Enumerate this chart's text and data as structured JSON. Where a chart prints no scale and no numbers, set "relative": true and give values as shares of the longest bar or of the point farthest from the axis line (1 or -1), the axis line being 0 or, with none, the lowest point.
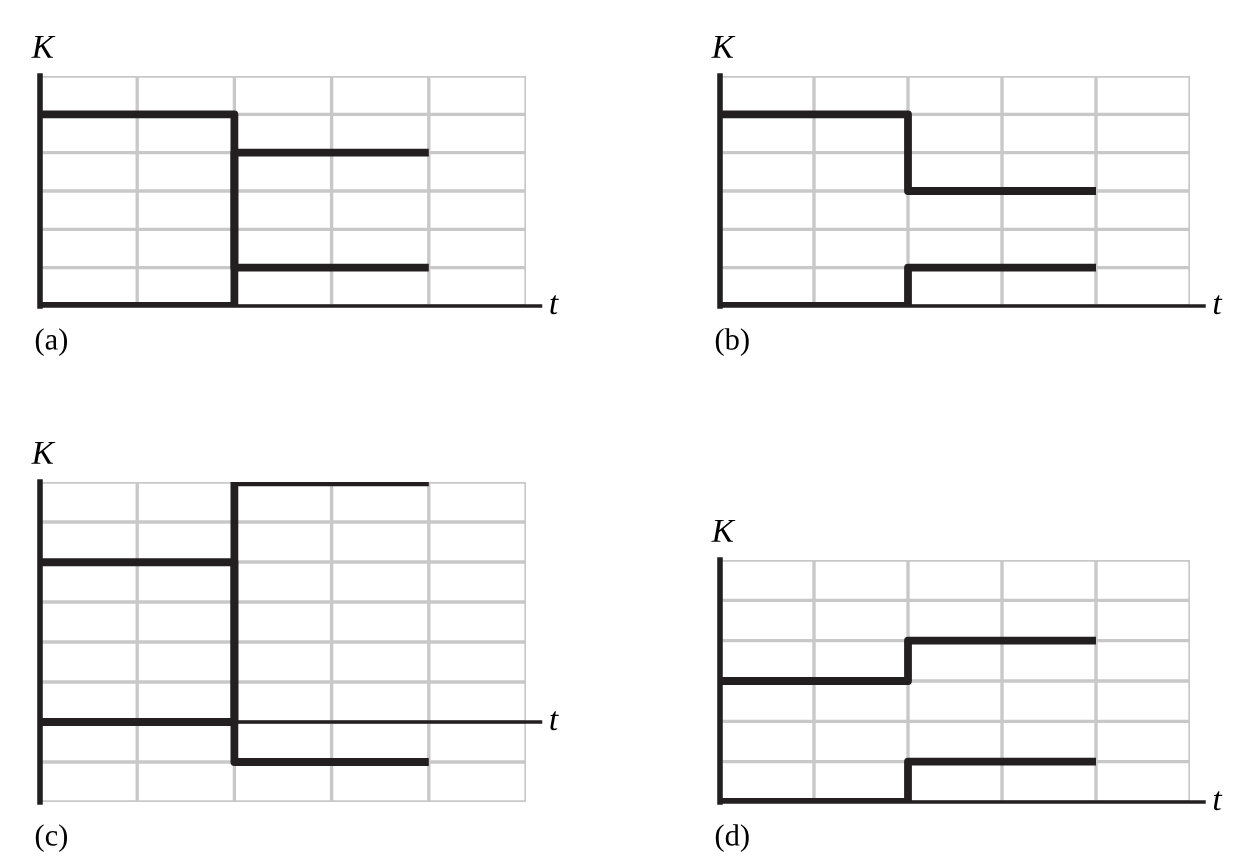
{
  "chart_data": [
    {
      "type": "step",
      "relative": true,
      "grid": true,
      "ylabel": "K",
      "xlabel": "t",
      "annotations": [
        "(a)"
      ],
      "categories": [
        null,
        null,
        null,
        null,
        null
      ],
      "series": [
        {
          "color": "#231f20",
          "values": [
            1,
            1,
            0.2,
            0.2,
            0.2
          ]
        },
        {
          "color": "#231f20",
          "values": [
            0,
            0,
            0.8,
            0.8,
            0.8
          ]
        }
      ]
    },
    {
      "type": "step",
      "relative": true,
      "grid": true,
      "ylabel": "K",
      "xlabel": "t",
      "annotations": [
        "(b)"
      ],
      "categories": [
        null,
        null,
        null,
        null,
        null
      ],
      "series": [
        {
          "color": "#231f20",
          "values": [
            1,
            1,
            0.6,
            0.6,
            0.6
          ]
        },
        {
          "color": "#231f20",
          "values": [
            0,
            0,
            0.2,
            0.2,
            0.2
          ]
        }
      ]
    },
    {
      "type": "step",
      "relative": true,
      "grid": true,
      "ylabel": "K",
      "xlabel": "t",
      "annotations": [
        "(c)"
      ],
      "categories": [
        null,
        null,
        null,
        null,
        null
      ],
      "series": [
        {
          "color": "#231f20",
          "values": [
            0.667,
            0.667,
            -0.167,
            -0.167,
            -0.167
          ]
        },
        {
          "color": "#231f20",
          "values": [
            0,
            0,
            1,
            1,
            1
          ]
        }
      ]
    },
    {
      "type": "step",
      "relative": true,
      "grid": true,
      "ylabel": "K",
      "xlabel": "t",
      "annotations": [
        "(d)"
      ],
      "categories": [
        null,
        null,
        null,
        null,
        null
      ],
      "series": [
        {
          "color": "#231f20",
          "values": [
            0.75,
            0.75,
            1,
            1,
            1
          ]
        },
        {
          "color": "#231f20",
          "values": [
            0,
            0,
            0.25,
            0.25,
            0.25
          ]
        }
      ]
    }
  ]
}
